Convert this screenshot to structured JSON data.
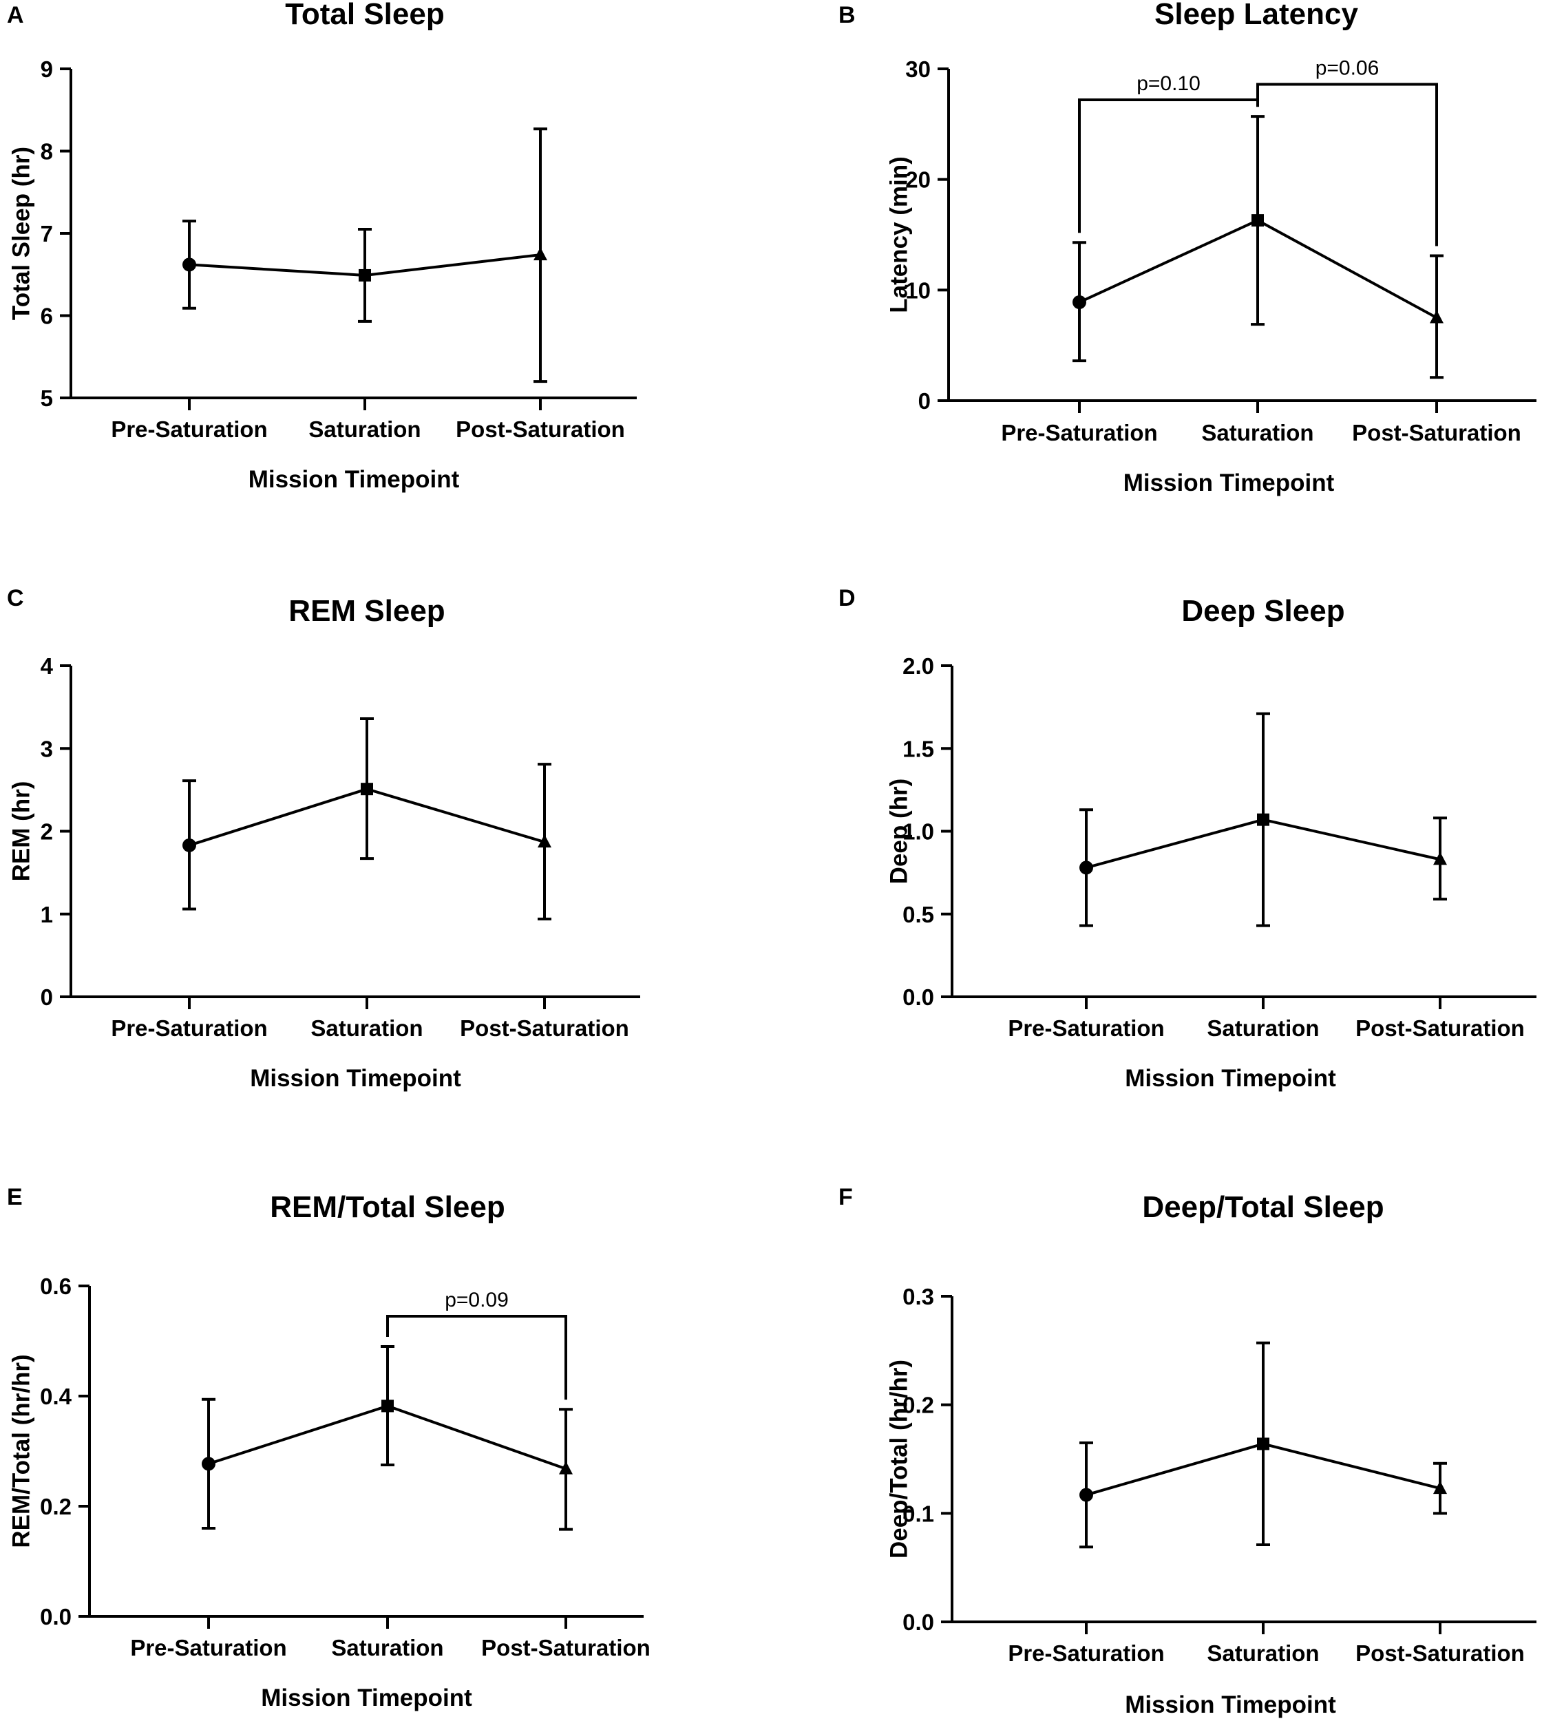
{
  "figure": {
    "accent_color": "#000000",
    "background": "#ffffff"
  },
  "chart_data": [
    {
      "panel": "A",
      "type": "line",
      "title": "Total Sleep",
      "xlabel": "Mission Timepoint",
      "ylabel": "Total Sleep (hr)",
      "categories": [
        "Pre-Saturation",
        "Saturation",
        "Post-Saturation"
      ],
      "yticks": [
        "5",
        "6",
        "7",
        "8",
        "9"
      ],
      "ylim": [
        5,
        9
      ],
      "values": [
        6.62,
        6.49,
        6.74
      ],
      "err_low": [
        6.09,
        5.93,
        5.2
      ],
      "err_high": [
        7.15,
        7.05,
        8.27
      ],
      "markers": [
        "circle",
        "square",
        "triangle"
      ],
      "comparisons": []
    },
    {
      "panel": "B",
      "type": "line",
      "title": "Sleep Latency",
      "xlabel": "Mission Timepoint",
      "ylabel": "Latency (min)",
      "categories": [
        "Pre-Saturation",
        "Saturation",
        "Post-Saturation"
      ],
      "yticks": [
        "0",
        "10",
        "20",
        "30"
      ],
      "ylim": [
        0,
        30
      ],
      "values": [
        8.9,
        16.3,
        7.5
      ],
      "err_low": [
        3.6,
        6.9,
        2.1
      ],
      "err_high": [
        14.3,
        25.7,
        13.1
      ],
      "markers": [
        "circle",
        "square",
        "triangle"
      ],
      "comparisons": [
        {
          "from": 0,
          "to": 1,
          "label": "p=0.10",
          "level": 27.2
        },
        {
          "from": 1,
          "to": 2,
          "label": "p=0.06",
          "level": 28.6
        }
      ]
    },
    {
      "panel": "C",
      "type": "line",
      "title": "REM Sleep",
      "xlabel": "Mission Timepoint",
      "ylabel": "REM (hr)",
      "categories": [
        "Pre-Saturation",
        "Saturation",
        "Post-Saturation"
      ],
      "yticks": [
        "0",
        "1",
        "2",
        "3",
        "4"
      ],
      "ylim": [
        0,
        4
      ],
      "values": [
        1.83,
        2.51,
        1.87
      ],
      "err_low": [
        1.06,
        1.67,
        0.94
      ],
      "err_high": [
        2.61,
        3.36,
        2.81
      ],
      "markers": [
        "circle",
        "square",
        "triangle"
      ],
      "comparisons": []
    },
    {
      "panel": "D",
      "type": "line",
      "title": "Deep Sleep",
      "xlabel": "Mission Timepoint",
      "ylabel": "Deep (hr)",
      "categories": [
        "Pre-Saturation",
        "Saturation",
        "Post-Saturation"
      ],
      "yticks": [
        "0.0",
        "0.5",
        "1.0",
        "1.5",
        "2.0"
      ],
      "ylim": [
        0,
        2
      ],
      "values": [
        0.78,
        1.07,
        0.83
      ],
      "err_low": [
        0.43,
        0.43,
        0.59
      ],
      "err_high": [
        1.13,
        1.71,
        1.08
      ],
      "markers": [
        "circle",
        "square",
        "triangle"
      ],
      "comparisons": []
    },
    {
      "panel": "E",
      "type": "line",
      "title": "REM/Total Sleep",
      "xlabel": "Mission Timepoint",
      "ylabel": "REM/Total (hr/hr)",
      "categories": [
        "Pre-Saturation",
        "Saturation",
        "Post-Saturation"
      ],
      "yticks": [
        "0.0",
        "0.2",
        "0.4",
        "0.6"
      ],
      "ylim": [
        0,
        0.6
      ],
      "values": [
        0.277,
        0.382,
        0.268
      ],
      "err_low": [
        0.16,
        0.275,
        0.158
      ],
      "err_high": [
        0.394,
        0.49,
        0.376
      ],
      "markers": [
        "circle",
        "square",
        "triangle"
      ],
      "comparisons": [
        {
          "from": 1,
          "to": 2,
          "label": "p=0.09",
          "level": 0.545
        }
      ]
    },
    {
      "panel": "F",
      "type": "line",
      "title": "Deep/Total Sleep",
      "xlabel": "Mission Timepoint",
      "ylabel": "Deep/Total (hr/hr)",
      "categories": [
        "Pre-Saturation",
        "Saturation",
        "Post-Saturation"
      ],
      "yticks": [
        "0.0",
        "0.1",
        "0.2",
        "0.3"
      ],
      "ylim": [
        0,
        0.3
      ],
      "values": [
        0.117,
        0.164,
        0.123
      ],
      "err_low": [
        0.069,
        0.071,
        0.1
      ],
      "err_high": [
        0.165,
        0.257,
        0.146
      ],
      "markers": [
        "circle",
        "square",
        "triangle"
      ],
      "comparisons": []
    }
  ]
}
